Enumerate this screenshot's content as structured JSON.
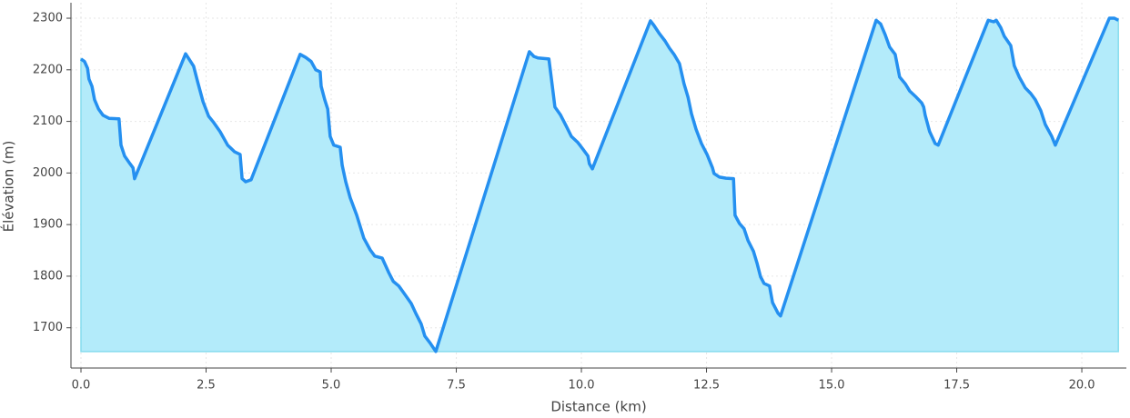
{
  "chart_data": {
    "type": "area",
    "x_label": "Distance (km)",
    "y_label": "Élévation (m)",
    "line_color": "#2590f0",
    "fill_color": "#b3ebfa",
    "grid": true,
    "xlim": [
      -0.2,
      20.89
    ],
    "ylim": [
      1622,
      2330
    ],
    "xticks": [
      {
        "value": 0,
        "label": "0.0"
      },
      2.5,
      {
        "value": 5,
        "label": "5.0"
      },
      7.5,
      {
        "value": 10,
        "label": "10.0"
      },
      12.5,
      {
        "value": 15,
        "label": "15.0"
      },
      17.5,
      {
        "value": 20,
        "label": "20.0"
      }
    ],
    "yticks": [
      1700,
      1800,
      1900,
      2000,
      2100,
      2200,
      2300
    ],
    "x": [
      0,
      0.07,
      0.13,
      0.16,
      0.22,
      0.27,
      0.35,
      0.44,
      0.56,
      0.76,
      0.8,
      0.87,
      0.98,
      1.04,
      1.07,
      2.09,
      2.25,
      2.33,
      2.44,
      2.55,
      2.65,
      2.78,
      2.93,
      3.07,
      3.18,
      3.22,
      3.29,
      3.4,
      4.38,
      4.49,
      4.6,
      4.69,
      4.78,
      4.8,
      4.87,
      4.93,
      4.98,
      5.05,
      5.18,
      5.22,
      5.29,
      5.38,
      5.51,
      5.65,
      5.78,
      5.87,
      6.02,
      6.15,
      6.24,
      6.35,
      6.44,
      6.6,
      6.69,
      6.8,
      6.87,
      6.98,
      7.09,
      8.96,
      9.05,
      9.13,
      9.35,
      9.42,
      9.47,
      9.58,
      9.69,
      9.8,
      9.93,
      10.04,
      10.13,
      10.16,
      10.22,
      11.38,
      11.45,
      11.56,
      11.67,
      11.76,
      11.85,
      11.96,
      12.05,
      12.13,
      12.2,
      12.29,
      12.4,
      12.51,
      12.62,
      12.65,
      12.76,
      12.89,
      13.04,
      13.07,
      13.16,
      13.25,
      13.33,
      13.44,
      13.51,
      13.58,
      13.65,
      13.76,
      13.82,
      13.93,
      13.98,
      15.89,
      15.98,
      16.07,
      16.16,
      16.27,
      16.36,
      16.47,
      16.56,
      16.69,
      16.8,
      16.84,
      16.87,
      16.96,
      17.07,
      17.13,
      18.13,
      18.24,
      18.29,
      18.38,
      18.45,
      18.58,
      18.65,
      18.75,
      18.87,
      18.98,
      19.07,
      19.18,
      19.27,
      19.4,
      19.47,
      20.55,
      20.65,
      20.73
    ],
    "values": [
      2221,
      2216,
      2203,
      2182,
      2168,
      2142,
      2124,
      2112,
      2106,
      2105,
      2054,
      2033,
      2018,
      2010,
      1989,
      2231,
      2207,
      2177,
      2138,
      2110,
      2098,
      2080,
      2054,
      2041,
      2036,
      1989,
      1983,
      1987,
      2230,
      2224,
      2216,
      2200,
      2196,
      2168,
      2142,
      2124,
      2071,
      2054,
      2050,
      2015,
      1983,
      1952,
      1918,
      1874,
      1851,
      1839,
      1835,
      1807,
      1790,
      1781,
      1769,
      1747,
      1728,
      1707,
      1684,
      1670,
      1654,
      2235,
      2226,
      2223,
      2221,
      2168,
      2128,
      2113,
      2092,
      2071,
      2059,
      2045,
      2033,
      2018,
      2008,
      2295,
      2286,
      2270,
      2256,
      2242,
      2230,
      2212,
      2173,
      2147,
      2115,
      2085,
      2057,
      2036,
      2010,
      1999,
      1992,
      1990,
      1989,
      1918,
      1902,
      1892,
      1869,
      1848,
      1825,
      1799,
      1786,
      1781,
      1749,
      1728,
      1723,
      2296,
      2289,
      2268,
      2244,
      2230,
      2186,
      2173,
      2159,
      2147,
      2136,
      2128,
      2112,
      2080,
      2057,
      2054,
      2296,
      2293,
      2296,
      2282,
      2265,
      2247,
      2208,
      2186,
      2165,
      2154,
      2142,
      2121,
      2094,
      2071,
      2054,
      2300,
      2300,
      2296
    ]
  }
}
